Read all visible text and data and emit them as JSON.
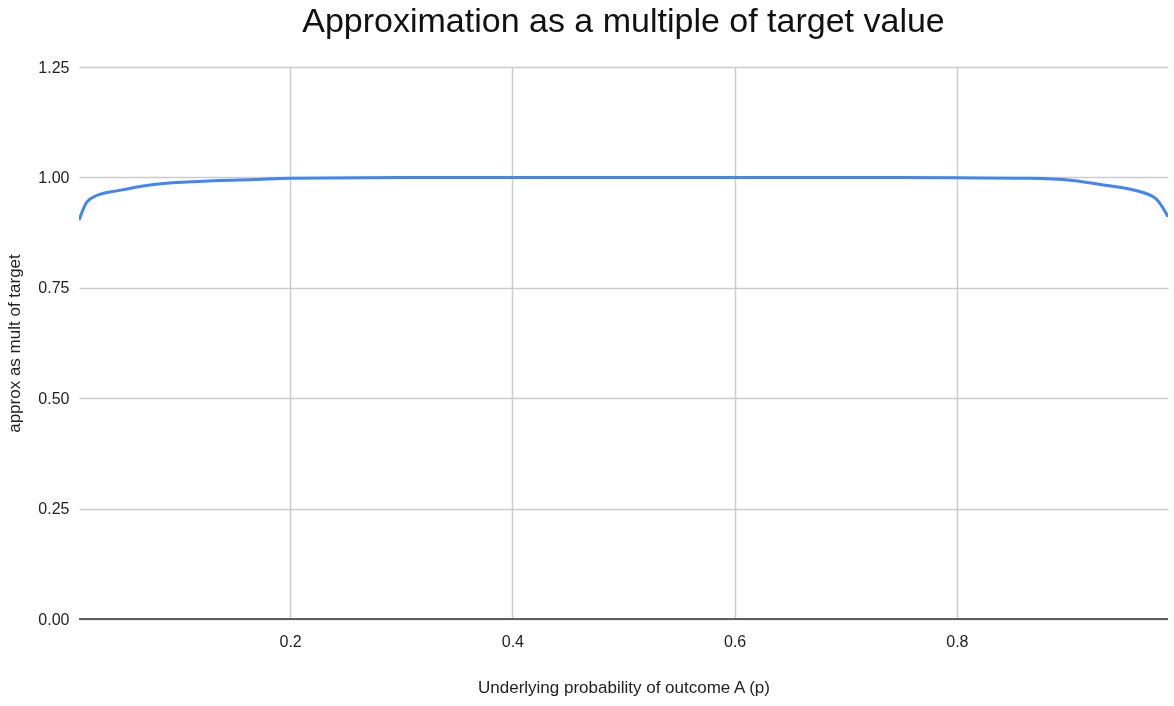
{
  "chart_data": {
    "type": "line",
    "title": "Approximation as a multiple of target value",
    "xlabel": "Underlying probability of outcome A (p)",
    "ylabel": "approx as mult of target",
    "x": [
      0.01,
      0.017,
      0.026,
      0.045,
      0.074,
      0.111,
      0.168,
      0.2,
      0.3,
      0.4,
      0.5,
      0.6,
      0.7,
      0.8,
      0.866,
      0.904,
      0.932,
      0.96,
      0.979,
      0.99
    ],
    "series": [
      {
        "color": "#4285f4",
        "values": [
          0.903,
          0.944,
          0.959,
          0.97,
          0.983,
          0.99,
          0.995,
          0.998,
          1.0,
          1.0,
          1.0,
          1.0,
          1.0,
          0.999,
          0.998,
          0.993,
          0.983,
          0.971,
          0.952,
          0.911
        ]
      }
    ],
    "xlim": [
      0.01,
      0.99
    ],
    "xticks": [
      0.2,
      0.4,
      0.6,
      0.8
    ],
    "ylim": [
      0,
      1.25
    ],
    "yticks": [
      {
        "value": 0,
        "label": "0.00"
      },
      {
        "value": 0.25,
        "label": "0.25"
      },
      {
        "value": 0.5,
        "label": "0.50"
      },
      {
        "value": 0.75,
        "label": "0.75"
      },
      {
        "value": 1,
        "label": "1.00"
      },
      {
        "value": 1.25,
        "label": "1.25"
      }
    ],
    "grid": true,
    "marker": "none",
    "line_style": "solid"
  }
}
